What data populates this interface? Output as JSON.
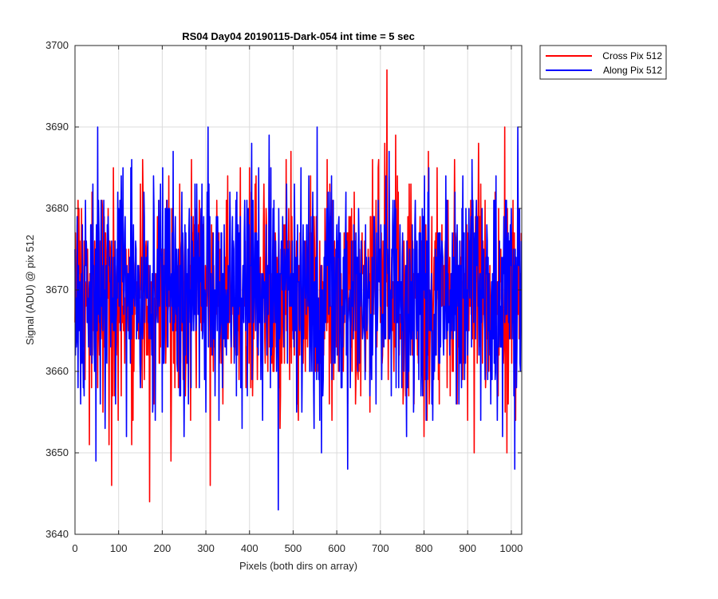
{
  "chart_data": {
    "type": "line",
    "title": "RS04 Day04 20190115-Dark-054 int time = 5 sec",
    "xlabel": "Pixels (both dirs on array)",
    "ylabel": "Signal (ADU) @ pix 512",
    "xlim": [
      0,
      1024
    ],
    "ylim": [
      3640,
      3700
    ],
    "xticks": [
      0,
      100,
      200,
      300,
      400,
      500,
      600,
      700,
      800,
      900,
      1000
    ],
    "yticks": [
      3640,
      3650,
      3660,
      3670,
      3680,
      3690,
      3700
    ],
    "grid": true,
    "legend_position": "outside-top-right",
    "series": [
      {
        "name": "Cross Pix 512",
        "color": "#ff0000",
        "mean": 3669.5,
        "x": [
          0,
          15,
          30,
          33,
          45,
          60,
          78,
          84,
          100,
          130,
          155,
          171,
          190,
          210,
          220,
          240,
          260,
          285,
          310,
          330,
          350,
          380,
          400,
          420,
          445,
          470,
          490,
          510,
          540,
          560,
          580,
          615,
          640,
          665,
          690,
          700,
          710,
          715,
          720,
          735,
          750,
          770,
          800,
          830,
          860,
          905,
          915,
          925,
          950,
          985,
          990,
          1000,
          1010,
          1020
        ],
        "y": [
          3666,
          3680,
          3668,
          3651,
          3676,
          3664,
          3651,
          3646,
          3673,
          3651,
          3686,
          3644,
          3678,
          3681,
          3649,
          3683,
          3658,
          3681,
          3646,
          3677,
          3684,
          3662,
          3685,
          3663,
          3686,
          3653,
          3680,
          3656,
          3684,
          3661,
          3680,
          3660,
          3682,
          3662,
          3681,
          3666,
          3688,
          3697,
          3684,
          3689,
          3664,
          3683,
          3652,
          3685,
          3657,
          3676,
          3650,
          3688,
          3663,
          3690,
          3650,
          3676,
          3654,
          3672
        ]
      },
      {
        "name": "Along Pix 512",
        "color": "#0000ff",
        "mean": 3670.0,
        "x": [
          0,
          20,
          37,
          48,
          52,
          70,
          100,
          118,
          130,
          150,
          180,
          200,
          225,
          250,
          275,
          300,
          305,
          330,
          355,
          370,
          405,
          430,
          445,
          462,
          466,
          485,
          520,
          555,
          565,
          580,
          610,
          625,
          650,
          690,
          720,
          760,
          780,
          820,
          850,
          880,
          910,
          930,
          960,
          980,
          1000,
          1008,
          1015,
          1022
        ],
        "y": [
          3675,
          3660,
          3678,
          3649,
          3690,
          3664,
          3680,
          3652,
          3686,
          3658,
          3684,
          3655,
          3687,
          3652,
          3683,
          3655,
          3690,
          3654,
          3682,
          3657,
          3688,
          3654,
          3689,
          3660,
          3643,
          3683,
          3655,
          3690,
          3650,
          3682,
          3658,
          3648,
          3680,
          3656,
          3687,
          3652,
          3681,
          3654,
          3684,
          3656,
          3686,
          3654,
          3681,
          3652,
          3680,
          3648,
          3690,
          3668
        ]
      }
    ]
  }
}
